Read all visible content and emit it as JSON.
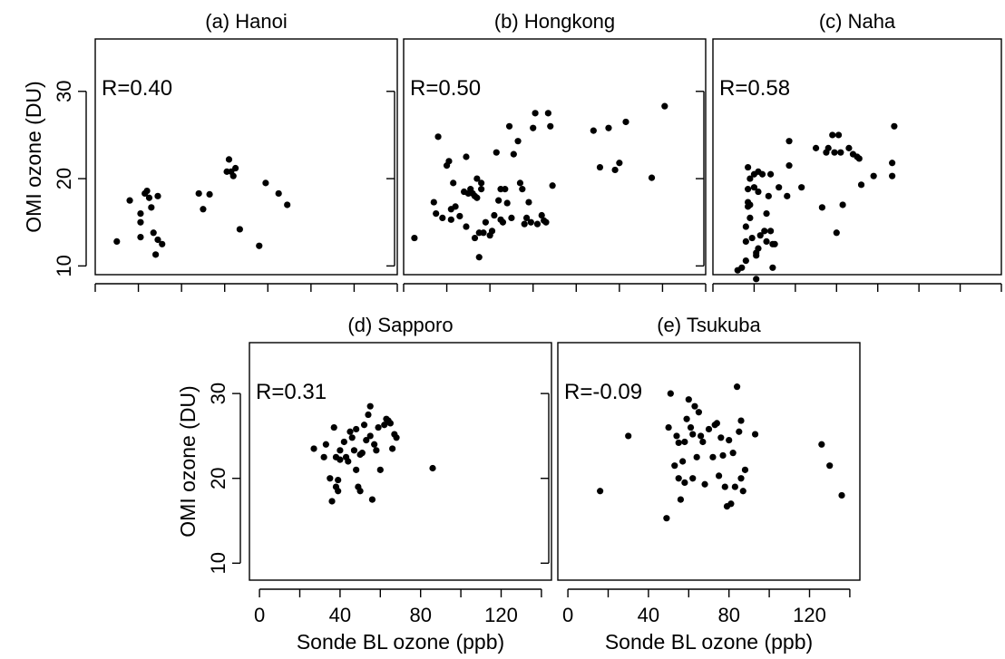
{
  "chart_data": [
    {
      "type": "scatter",
      "title": "(a) Hanoi",
      "annotation": "R=0.40",
      "xlim": [
        0,
        140
      ],
      "ylim": [
        9,
        36
      ],
      "xticks": [
        0,
        20,
        40,
        60,
        80,
        100,
        120,
        140
      ],
      "yticks": [
        10,
        20,
        30
      ],
      "xticklabels": [],
      "yticklabels": [
        "10",
        "20",
        "30"
      ],
      "xlabel": "",
      "ylabel": "OMI ozone (DU)",
      "points": [
        [
          10,
          12.8
        ],
        [
          16,
          17.5
        ],
        [
          21,
          16
        ],
        [
          21,
          15
        ],
        [
          21,
          13.3
        ],
        [
          23,
          18.3
        ],
        [
          24,
          18.6
        ],
        [
          25,
          17.8
        ],
        [
          26,
          16.7
        ],
        [
          27,
          13.8
        ],
        [
          28,
          11.3
        ],
        [
          29,
          13
        ],
        [
          29,
          18
        ],
        [
          31,
          12.5
        ],
        [
          48,
          18.3
        ],
        [
          50,
          16.5
        ],
        [
          53,
          18.2
        ],
        [
          61,
          20.8
        ],
        [
          62,
          22.2
        ],
        [
          63,
          20.8
        ],
        [
          64,
          20.3
        ],
        [
          65,
          21.2
        ],
        [
          67,
          14.2
        ],
        [
          76,
          12.3
        ],
        [
          79,
          19.5
        ],
        [
          85,
          18.3
        ],
        [
          89,
          17
        ]
      ]
    },
    {
      "type": "scatter",
      "title": "(b) Hongkong",
      "annotation": "R=0.50",
      "xlim": [
        0,
        140
      ],
      "ylim": [
        9,
        36
      ],
      "xticks": [
        0,
        20,
        40,
        60,
        80,
        100,
        120,
        140
      ],
      "yticks": [
        10,
        20,
        30
      ],
      "xticklabels": [],
      "yticklabels": [],
      "xlabel": "",
      "ylabel": "",
      "points": [
        [
          5,
          13.2
        ],
        [
          14,
          17.3
        ],
        [
          15,
          16
        ],
        [
          16,
          24.8
        ],
        [
          18,
          15.5
        ],
        [
          20,
          21.5
        ],
        [
          21,
          22
        ],
        [
          22,
          16.5
        ],
        [
          22,
          15.3
        ],
        [
          23,
          19.5
        ],
        [
          24,
          16.8
        ],
        [
          26,
          15.7
        ],
        [
          28,
          18.5
        ],
        [
          29,
          22.5
        ],
        [
          29,
          14.5
        ],
        [
          30,
          18.3
        ],
        [
          31,
          18.8
        ],
        [
          32,
          18.3
        ],
        [
          33,
          18
        ],
        [
          33,
          13.2
        ],
        [
          34,
          17.8
        ],
        [
          34,
          20
        ],
        [
          35,
          13.8
        ],
        [
          35,
          11
        ],
        [
          36,
          19.5
        ],
        [
          36,
          18.8
        ],
        [
          37,
          13.8
        ],
        [
          38,
          15
        ],
        [
          40,
          13.5
        ],
        [
          41,
          14
        ],
        [
          42,
          15.8
        ],
        [
          43,
          23
        ],
        [
          44,
          17.5
        ],
        [
          45,
          18.8
        ],
        [
          45,
          15.3
        ],
        [
          46,
          15
        ],
        [
          47,
          18.8
        ],
        [
          48,
          17.2
        ],
        [
          49,
          26
        ],
        [
          50,
          15.5
        ],
        [
          51,
          22.8
        ],
        [
          53,
          24.3
        ],
        [
          54,
          19.5
        ],
        [
          55,
          18.8
        ],
        [
          56,
          14.8
        ],
        [
          57,
          15.5
        ],
        [
          58,
          17.3
        ],
        [
          59,
          15
        ],
        [
          60,
          25.8
        ],
        [
          61,
          27.5
        ],
        [
          62,
          14.8
        ],
        [
          64,
          15.8
        ],
        [
          65,
          15.2
        ],
        [
          66,
          15
        ],
        [
          67,
          27.5
        ],
        [
          68,
          26
        ],
        [
          69,
          19.2
        ],
        [
          88,
          25.5
        ],
        [
          91,
          21.3
        ],
        [
          95,
          25.8
        ],
        [
          98,
          21
        ],
        [
          100,
          21.8
        ],
        [
          103,
          26.5
        ],
        [
          115,
          20.1
        ],
        [
          121,
          28.3
        ]
      ]
    },
    {
      "type": "scatter",
      "title": "(c) Naha",
      "annotation": "R=0.58",
      "xlim": [
        0,
        140
      ],
      "ylim": [
        9,
        36
      ],
      "xticks": [
        0,
        20,
        40,
        60,
        80,
        100,
        120,
        140
      ],
      "yticks": [
        10,
        20,
        30
      ],
      "xticklabels": [],
      "yticklabels": [],
      "xlabel": "",
      "ylabel": "",
      "points": [
        [
          12,
          9.5
        ],
        [
          14,
          9.8
        ],
        [
          16,
          10.6
        ],
        [
          16,
          12.8
        ],
        [
          16,
          14.5
        ],
        [
          17,
          16.8
        ],
        [
          17,
          17.3
        ],
        [
          17,
          18.8
        ],
        [
          17,
          21.3
        ],
        [
          18,
          15.5
        ],
        [
          18,
          17
        ],
        [
          18,
          20
        ],
        [
          19,
          13.2
        ],
        [
          20,
          20.5
        ],
        [
          20,
          19
        ],
        [
          21,
          8.5
        ],
        [
          21,
          11.5
        ],
        [
          21,
          11.2
        ],
        [
          22,
          12
        ],
        [
          22,
          18.5
        ],
        [
          22,
          20.8
        ],
        [
          23,
          13.5
        ],
        [
          24,
          20.5
        ],
        [
          25,
          14
        ],
        [
          26,
          12.8
        ],
        [
          26,
          16
        ],
        [
          27,
          18
        ],
        [
          28,
          14
        ],
        [
          28,
          20.5
        ],
        [
          29,
          12.5
        ],
        [
          29,
          9.8
        ],
        [
          30,
          12.5
        ],
        [
          32,
          19
        ],
        [
          36,
          18
        ],
        [
          37,
          21.5
        ],
        [
          37,
          24.3
        ],
        [
          43,
          19
        ],
        [
          50,
          23.5
        ],
        [
          53,
          16.7
        ],
        [
          55,
          23
        ],
        [
          56,
          23.5
        ],
        [
          58,
          25
        ],
        [
          59,
          23
        ],
        [
          60,
          13.8
        ],
        [
          61,
          25
        ],
        [
          62,
          23
        ],
        [
          63,
          17
        ],
        [
          66,
          23.5
        ],
        [
          68,
          22.8
        ],
        [
          70,
          22.5
        ],
        [
          71,
          22.3
        ],
        [
          72,
          19.3
        ],
        [
          78,
          20.3
        ],
        [
          87,
          21.8
        ],
        [
          87,
          20.3
        ],
        [
          88,
          26
        ]
      ]
    },
    {
      "type": "scatter",
      "title": "(d) Sapporo",
      "annotation": "R=0.31",
      "xlim": [
        -5,
        145
      ],
      "ylim": [
        8,
        36
      ],
      "xticks": [
        0,
        20,
        40,
        60,
        80,
        100,
        120,
        140
      ],
      "yticks": [
        10,
        20,
        30
      ],
      "xticklabels": [
        "0",
        "40",
        "80",
        "120"
      ],
      "yticklabels": [
        "10",
        "20",
        "30"
      ],
      "xlabel": "Sonde BL ozone (ppb)",
      "ylabel": "OMI ozone (DU)",
      "points": [
        [
          27,
          23.5
        ],
        [
          32,
          22.5
        ],
        [
          33,
          24
        ],
        [
          35,
          20
        ],
        [
          36,
          17.3
        ],
        [
          37,
          26
        ],
        [
          38,
          22.5
        ],
        [
          38,
          19
        ],
        [
          39,
          18.5
        ],
        [
          39,
          19.8
        ],
        [
          40,
          23.3
        ],
        [
          40,
          22.2
        ],
        [
          42,
          24.3
        ],
        [
          43,
          22.5
        ],
        [
          44,
          22
        ],
        [
          45,
          25.5
        ],
        [
          46,
          24.8
        ],
        [
          47,
          23.3
        ],
        [
          48,
          21
        ],
        [
          48,
          25.8
        ],
        [
          49,
          19
        ],
        [
          50,
          22.8
        ],
        [
          50,
          18.5
        ],
        [
          51,
          23
        ],
        [
          52,
          26.3
        ],
        [
          53,
          24.5
        ],
        [
          54,
          27.5
        ],
        [
          55,
          25
        ],
        [
          55,
          28.5
        ],
        [
          56,
          17.5
        ],
        [
          57,
          24
        ],
        [
          58,
          23.3
        ],
        [
          59,
          26
        ],
        [
          60,
          21
        ],
        [
          62,
          26.3
        ],
        [
          63,
          27
        ],
        [
          64,
          26.8
        ],
        [
          65,
          26.5
        ],
        [
          66,
          23.5
        ],
        [
          67,
          25.2
        ],
        [
          68,
          24.8
        ],
        [
          86,
          21.2
        ]
      ]
    },
    {
      "type": "scatter",
      "title": "(e) Tsukuba",
      "annotation": "R=-0.09",
      "xlim": [
        -5,
        145
      ],
      "ylim": [
        8,
        36
      ],
      "xticks": [
        0,
        20,
        40,
        60,
        80,
        100,
        120,
        140
      ],
      "yticks": [
        10,
        20,
        30
      ],
      "xticklabels": [
        "0",
        "40",
        "80",
        "120"
      ],
      "yticklabels": [],
      "xlabel": "Sonde BL ozone (ppb)",
      "ylabel": "",
      "points": [
        [
          16,
          18.5
        ],
        [
          30,
          25
        ],
        [
          49,
          15.3
        ],
        [
          50,
          26
        ],
        [
          51,
          30
        ],
        [
          53,
          21.5
        ],
        [
          54,
          25
        ],
        [
          55,
          24.2
        ],
        [
          55,
          20
        ],
        [
          56,
          17.5
        ],
        [
          57,
          22
        ],
        [
          58,
          19.5
        ],
        [
          58,
          24.3
        ],
        [
          59,
          27
        ],
        [
          60,
          29.3
        ],
        [
          61,
          26
        ],
        [
          62,
          25.2
        ],
        [
          62,
          20
        ],
        [
          63,
          28.5
        ],
        [
          64,
          22.5
        ],
        [
          65,
          27.8
        ],
        [
          66,
          25
        ],
        [
          67,
          24.3
        ],
        [
          68,
          19.3
        ],
        [
          70,
          25.8
        ],
        [
          72,
          22.5
        ],
        [
          73,
          26.3
        ],
        [
          74,
          26.5
        ],
        [
          75,
          20.3
        ],
        [
          76,
          24.8
        ],
        [
          77,
          22.7
        ],
        [
          78,
          19
        ],
        [
          79,
          16.7
        ],
        [
          80,
          24.5
        ],
        [
          81,
          17
        ],
        [
          82,
          23
        ],
        [
          83,
          19
        ],
        [
          84,
          30.8
        ],
        [
          85,
          25.5
        ],
        [
          86,
          26.8
        ],
        [
          86,
          20
        ],
        [
          87,
          18.5
        ],
        [
          88,
          21
        ],
        [
          93,
          25.2
        ],
        [
          126,
          24
        ],
        [
          130,
          21.5
        ],
        [
          136,
          18
        ]
      ]
    }
  ]
}
